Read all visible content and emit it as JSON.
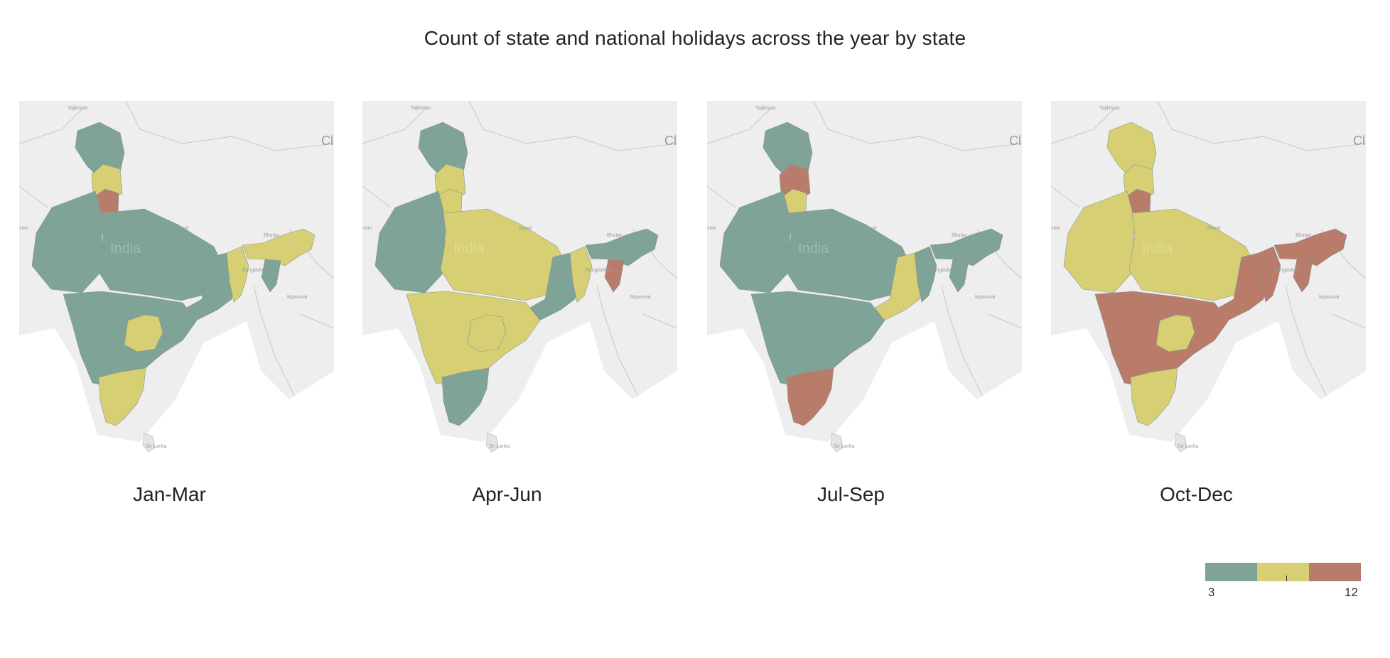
{
  "title": "Count of state and national holidays across the year by state",
  "colors": {
    "low": "#7fa396",
    "mid": "#d7cf73",
    "high": "#b97c6a",
    "land": "#eeeeee",
    "water": "#ffffff",
    "border": "#c8c8c8"
  },
  "map_labels": {
    "country": "India",
    "neighbors": [
      "Tajikistan",
      "Nepal",
      "Bhutan",
      "Bangladesh",
      "Myanmar",
      "Sri Lanka",
      "stan",
      "Cl"
    ]
  },
  "panels": [
    {
      "label": "Jan-Mar",
      "regions": {
        "north": "low",
        "punjab": "mid",
        "haryana": "high",
        "northwest": "low",
        "central": "low",
        "east": "low",
        "westbengal": "mid",
        "northeast": "mid",
        "northeast2": "low",
        "south": "low",
        "telangana": "mid",
        "deepsouth": "mid"
      }
    },
    {
      "label": "Apr-Jun",
      "regions": {
        "north": "low",
        "punjab": "mid",
        "haryana": "mid",
        "northwest": "low",
        "central": "mid",
        "east": "low",
        "westbengal": "mid",
        "northeast": "low",
        "northeast2": "high",
        "south": "mid",
        "telangana": "mid",
        "deepsouth": "low"
      }
    },
    {
      "label": "Jul-Sep",
      "regions": {
        "north": "low",
        "punjab": "high",
        "haryana": "mid",
        "northwest": "low",
        "central": "low",
        "east": "mid",
        "westbengal": "low",
        "northeast": "low",
        "northeast2": "low",
        "south": "low",
        "telangana": "low",
        "deepsouth": "high"
      }
    },
    {
      "label": "Oct-Dec",
      "regions": {
        "north": "mid",
        "punjab": "mid",
        "haryana": "high",
        "northwest": "mid",
        "central": "mid",
        "east": "high",
        "westbengal": "high",
        "northeast": "high",
        "northeast2": "high",
        "south": "high",
        "telangana": "mid",
        "deepsouth": "mid"
      }
    }
  ],
  "legend": {
    "min": "3",
    "max": "12"
  }
}
